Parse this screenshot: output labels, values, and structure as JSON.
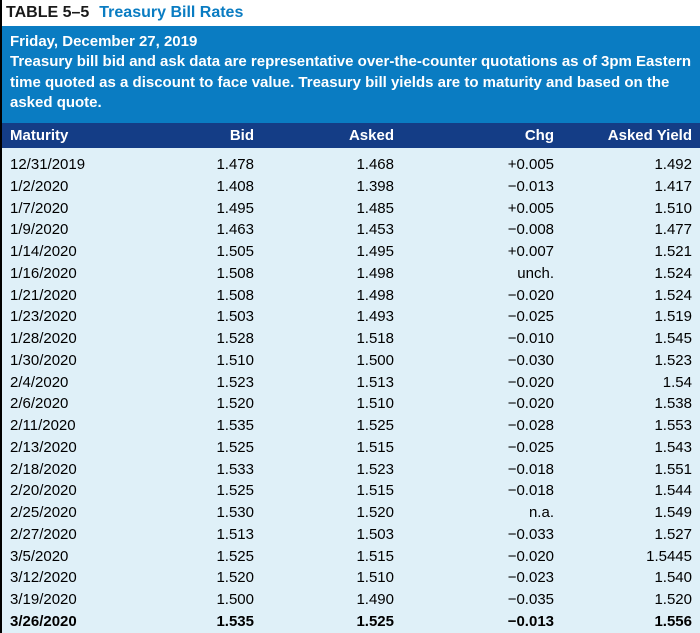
{
  "colors": {
    "accent": "#0a7cc2",
    "header_bg": "#143d86",
    "title_sub": "#0a7cc2",
    "body_bg": "#dff0f8",
    "text_white": "#ffffff",
    "text_black": "#000000"
  },
  "title": {
    "label": "TABLE 5–5",
    "sub": "Treasury Bill Rates"
  },
  "info": {
    "date": "Friday, December 27, 2019",
    "description": "Treasury bill bid and ask data are representative over-the-counter quotations as of 3pm Eastern time quoted as a discount to face value. Treasury bill yields are to maturity and based on the asked quote."
  },
  "columns": [
    "Maturity",
    "Bid",
    "Asked",
    "Chg",
    "Asked Yield"
  ],
  "rows": [
    {
      "maturity": "12/31/2019",
      "bid": "1.478",
      "asked": "1.468",
      "chg": "+0.005",
      "yield": "1.492",
      "bold": false
    },
    {
      "maturity": "1/2/2020",
      "bid": "1.408",
      "asked": "1.398",
      "chg": "−0.013",
      "yield": "1.417",
      "bold": false
    },
    {
      "maturity": "1/7/2020",
      "bid": "1.495",
      "asked": "1.485",
      "chg": "+0.005",
      "yield": "1.510",
      "bold": false
    },
    {
      "maturity": "1/9/2020",
      "bid": "1.463",
      "asked": "1.453",
      "chg": "−0.008",
      "yield": "1.477",
      "bold": false
    },
    {
      "maturity": "1/14/2020",
      "bid": "1.505",
      "asked": "1.495",
      "chg": "+0.007",
      "yield": "1.521",
      "bold": false
    },
    {
      "maturity": "1/16/2020",
      "bid": "1.508",
      "asked": "1.498",
      "chg": "unch.",
      "yield": "1.524",
      "bold": false
    },
    {
      "maturity": "1/21/2020",
      "bid": "1.508",
      "asked": "1.498",
      "chg": "−0.020",
      "yield": "1.524",
      "bold": false
    },
    {
      "maturity": "1/23/2020",
      "bid": "1.503",
      "asked": "1.493",
      "chg": "−0.025",
      "yield": "1.519",
      "bold": false
    },
    {
      "maturity": "1/28/2020",
      "bid": "1.528",
      "asked": "1.518",
      "chg": "−0.010",
      "yield": "1.545",
      "bold": false
    },
    {
      "maturity": "1/30/2020",
      "bid": "1.510",
      "asked": "1.500",
      "chg": "−0.030",
      "yield": "1.523",
      "bold": false
    },
    {
      "maturity": "2/4/2020",
      "bid": "1.523",
      "asked": "1.513",
      "chg": "−0.020",
      "yield": "1.54",
      "bold": false
    },
    {
      "maturity": "2/6/2020",
      "bid": "1.520",
      "asked": "1.510",
      "chg": "−0.020",
      "yield": "1.538",
      "bold": false
    },
    {
      "maturity": "2/11/2020",
      "bid": "1.535",
      "asked": "1.525",
      "chg": "−0.028",
      "yield": "1.553",
      "bold": false
    },
    {
      "maturity": "2/13/2020",
      "bid": "1.525",
      "asked": "1.515",
      "chg": "−0.025",
      "yield": "1.543",
      "bold": false
    },
    {
      "maturity": "2/18/2020",
      "bid": "1.533",
      "asked": "1.523",
      "chg": "−0.018",
      "yield": "1.551",
      "bold": false
    },
    {
      "maturity": "2/20/2020",
      "bid": "1.525",
      "asked": "1.515",
      "chg": "−0.018",
      "yield": "1.544",
      "bold": false
    },
    {
      "maturity": "2/25/2020",
      "bid": "1.530",
      "asked": "1.520",
      "chg": "n.a.",
      "yield": "1.549",
      "bold": false
    },
    {
      "maturity": "2/27/2020",
      "bid": "1.513",
      "asked": "1.503",
      "chg": "−0.033",
      "yield": "1.527",
      "bold": false
    },
    {
      "maturity": "3/5/2020",
      "bid": "1.525",
      "asked": "1.515",
      "chg": "−0.020",
      "yield": "1.5445",
      "bold": false
    },
    {
      "maturity": "3/12/2020",
      "bid": "1.520",
      "asked": "1.510",
      "chg": "−0.023",
      "yield": "1.540",
      "bold": false
    },
    {
      "maturity": "3/19/2020",
      "bid": "1.500",
      "asked": "1.490",
      "chg": "−0.035",
      "yield": "1.520",
      "bold": false
    },
    {
      "maturity": "3/26/2020",
      "bid": "1.535",
      "asked": "1.525",
      "chg": "−0.013",
      "yield": "1.556",
      "bold": true
    }
  ]
}
